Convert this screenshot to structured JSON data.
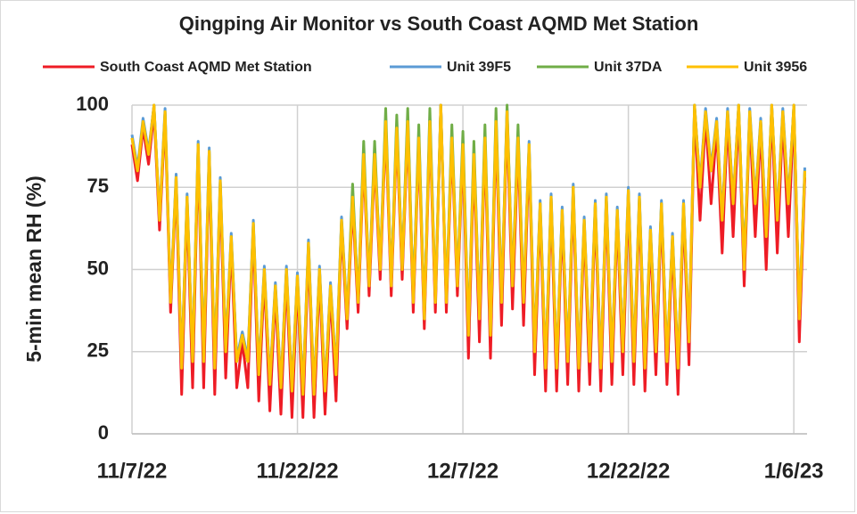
{
  "chart_data": {
    "type": "line",
    "title": "Qingping Air Monitor vs South Coast AQMD Met Station",
    "ylabel": "5-min mean RH (%)",
    "x": [
      0,
      0.5,
      1,
      1.5,
      2,
      2.5,
      3,
      3.5,
      4,
      4.5,
      5,
      5.5,
      6,
      6.5,
      7,
      7.5,
      8,
      8.5,
      9,
      9.5,
      10,
      10.5,
      11,
      11.5,
      12,
      12.5,
      13,
      13.5,
      14,
      14.5,
      15,
      15.5,
      16,
      16.5,
      17,
      17.5,
      18,
      18.5,
      19,
      19.5,
      20,
      20.5,
      21,
      21.5,
      22,
      22.5,
      23,
      23.5,
      24,
      24.5,
      25,
      25.5,
      26,
      26.5,
      27,
      27.5,
      28,
      28.5,
      29,
      29.5,
      30,
      30.5,
      31,
      31.5,
      32,
      32.5,
      33,
      33.5,
      34,
      34.5,
      35,
      35.5,
      36,
      36.5,
      37,
      37.5,
      38,
      38.5,
      39,
      39.5,
      40,
      40.5,
      41,
      41.5,
      42,
      42.5,
      43,
      43.5,
      44,
      44.5,
      45,
      45.5,
      46,
      46.5,
      47,
      47.5,
      48,
      48.5,
      49,
      49.5,
      50,
      50.5,
      51,
      51.5,
      52,
      52.5,
      53,
      53.5,
      54,
      54.5,
      55,
      55.5,
      56,
      56.5,
      57,
      57.5,
      58,
      58.5,
      59,
      59.5,
      60,
      60.5,
      61
    ],
    "xlim": [
      0,
      61.2
    ],
    "xticks": [
      {
        "value": 0,
        "label": "11/7/22"
      },
      {
        "value": 15,
        "label": "11/22/22"
      },
      {
        "value": 30,
        "label": "12/7/22"
      },
      {
        "value": 45,
        "label": "12/22/22"
      },
      {
        "value": 60,
        "label": "1/6/23"
      }
    ],
    "ylim": [
      0,
      100
    ],
    "yticks": [
      0,
      25,
      50,
      75,
      100
    ],
    "grid": true,
    "legend": "top",
    "series": [
      {
        "name": "South Coast AQMD Met Station",
        "color": "#ee1c25",
        "values": [
          88,
          77,
          93,
          82,
          98,
          62,
          96,
          37,
          76,
          12,
          70,
          14,
          86,
          14,
          84,
          12,
          75,
          17,
          58,
          14,
          28,
          14,
          62,
          10,
          48,
          7,
          43,
          6,
          48,
          5,
          46,
          5,
          56,
          5,
          48,
          6,
          43,
          10,
          63,
          32,
          70,
          37,
          83,
          42,
          83,
          47,
          93,
          42,
          91,
          47,
          93,
          37,
          88,
          32,
          93,
          37,
          100,
          37,
          88,
          42,
          86,
          23,
          83,
          28,
          88,
          23,
          93,
          33,
          96,
          38,
          88,
          33,
          86,
          18,
          68,
          13,
          70,
          13,
          66,
          15,
          73,
          13,
          63,
          15,
          68,
          13,
          70,
          15,
          66,
          18,
          72,
          15,
          70,
          13,
          60,
          18,
          68,
          15,
          58,
          12,
          68,
          21,
          98,
          65,
          96,
          70,
          93,
          55,
          96,
          60,
          98,
          45,
          96,
          60,
          93,
          50,
          98,
          55,
          96,
          60,
          98,
          28,
          78
        ]
      },
      {
        "name": "Unit 39F5",
        "color": "#5b9bd5",
        "values": [
          91,
          81,
          96,
          86,
          100,
          66,
          99,
          41,
          79,
          21,
          73,
          23,
          89,
          23,
          87,
          21,
          78,
          26,
          61,
          23,
          31,
          23,
          65,
          19,
          51,
          16,
          46,
          15,
          51,
          14,
          49,
          13,
          59,
          13,
          51,
          14,
          46,
          19,
          66,
          36,
          73,
          41,
          86,
          46,
          86,
          51,
          96,
          46,
          94,
          51,
          96,
          41,
          91,
          36,
          96,
          41,
          100,
          41,
          91,
          46,
          89,
          31,
          86,
          36,
          91,
          31,
          96,
          41,
          99,
          46,
          91,
          41,
          89,
          26,
          71,
          21,
          73,
          21,
          69,
          23,
          76,
          21,
          66,
          23,
          71,
          21,
          73,
          23,
          69,
          26,
          75,
          23,
          73,
          21,
          63,
          26,
          71,
          23,
          61,
          21,
          71,
          29,
          100,
          76,
          99,
          81,
          96,
          66,
          99,
          71,
          100,
          51,
          99,
          71,
          96,
          61,
          100,
          66,
          99,
          71,
          100,
          36,
          81
        ]
      },
      {
        "name": "Unit 37DA",
        "color": "#70ad47",
        "values": [
          90,
          80,
          95,
          85,
          100,
          65,
          98,
          40,
          78,
          20,
          72,
          22,
          88,
          22,
          86,
          20,
          77,
          25,
          60,
          22,
          30,
          22,
          64,
          18,
          50,
          15,
          45,
          14,
          50,
          13,
          48,
          12,
          58,
          12,
          50,
          13,
          45,
          18,
          65,
          35,
          76,
          40,
          89,
          45,
          89,
          50,
          99,
          45,
          97,
          50,
          99,
          40,
          94,
          35,
          99,
          40,
          100,
          40,
          94,
          45,
          92,
          30,
          89,
          35,
          94,
          30,
          99,
          40,
          100,
          45,
          94,
          40,
          88,
          25,
          70,
          20,
          72,
          20,
          68,
          22,
          75,
          20,
          65,
          22,
          70,
          20,
          72,
          22,
          68,
          25,
          74,
          22,
          72,
          20,
          62,
          25,
          70,
          22,
          60,
          20,
          70,
          28,
          100,
          75,
          98,
          80,
          95,
          65,
          98,
          70,
          100,
          50,
          98,
          70,
          95,
          60,
          100,
          65,
          98,
          70,
          100,
          35,
          80
        ]
      },
      {
        "name": "Unit 3956",
        "color": "#ffc000",
        "values": [
          90,
          80,
          95,
          85,
          100,
          65,
          98,
          40,
          78,
          20,
          72,
          22,
          88,
          22,
          86,
          20,
          77,
          25,
          60,
          22,
          30,
          22,
          64,
          18,
          50,
          15,
          45,
          14,
          50,
          13,
          48,
          12,
          58,
          12,
          50,
          13,
          45,
          18,
          65,
          35,
          72,
          40,
          85,
          45,
          85,
          50,
          95,
          45,
          93,
          50,
          95,
          40,
          90,
          35,
          95,
          40,
          100,
          40,
          90,
          45,
          88,
          30,
          85,
          35,
          90,
          30,
          95,
          40,
          98,
          45,
          90,
          40,
          88,
          25,
          70,
          20,
          72,
          20,
          68,
          22,
          75,
          20,
          65,
          22,
          70,
          20,
          72,
          22,
          68,
          25,
          74,
          22,
          72,
          20,
          62,
          25,
          70,
          22,
          60,
          20,
          70,
          28,
          100,
          75,
          98,
          80,
          95,
          65,
          98,
          70,
          100,
          50,
          98,
          70,
          95,
          60,
          100,
          65,
          98,
          70,
          100,
          35,
          80
        ]
      }
    ]
  }
}
